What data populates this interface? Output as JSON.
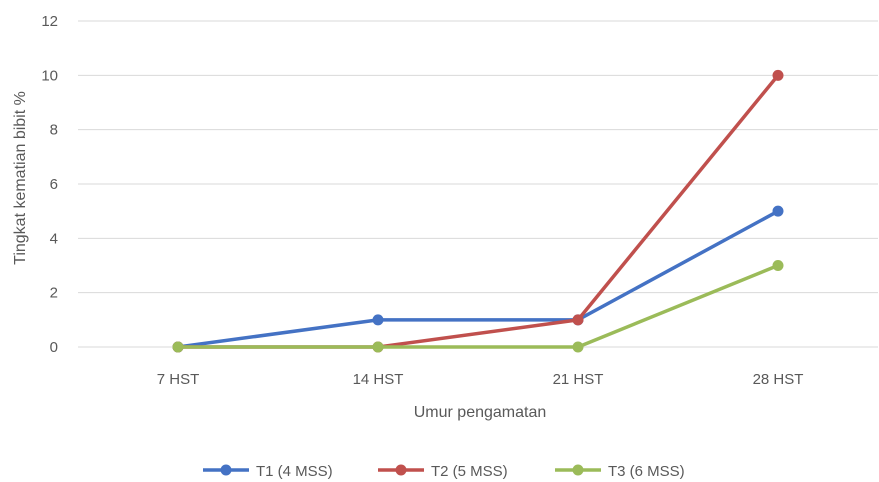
{
  "chart_data": {
    "type": "line",
    "title": "",
    "xlabel": "Umur pengamatan",
    "ylabel": "Tingkat kematian  bibit %",
    "categories": [
      "7 HST",
      "14 HST",
      "21 HST",
      "28 HST"
    ],
    "ylim": [
      0,
      12
    ],
    "yticks": [
      0,
      2,
      4,
      6,
      8,
      10,
      12
    ],
    "grid": true,
    "legend_position": "bottom",
    "series": [
      {
        "name": "T1 (4 MSS)",
        "color": "#4472C4",
        "values": [
          0,
          1,
          1,
          5
        ]
      },
      {
        "name": "T2 (5 MSS)",
        "color": "#C0504D",
        "values": [
          0,
          0,
          1,
          10
        ]
      },
      {
        "name": "T3 (6 MSS)",
        "color": "#9BBB59",
        "values": [
          0,
          0,
          0,
          3
        ]
      }
    ]
  }
}
